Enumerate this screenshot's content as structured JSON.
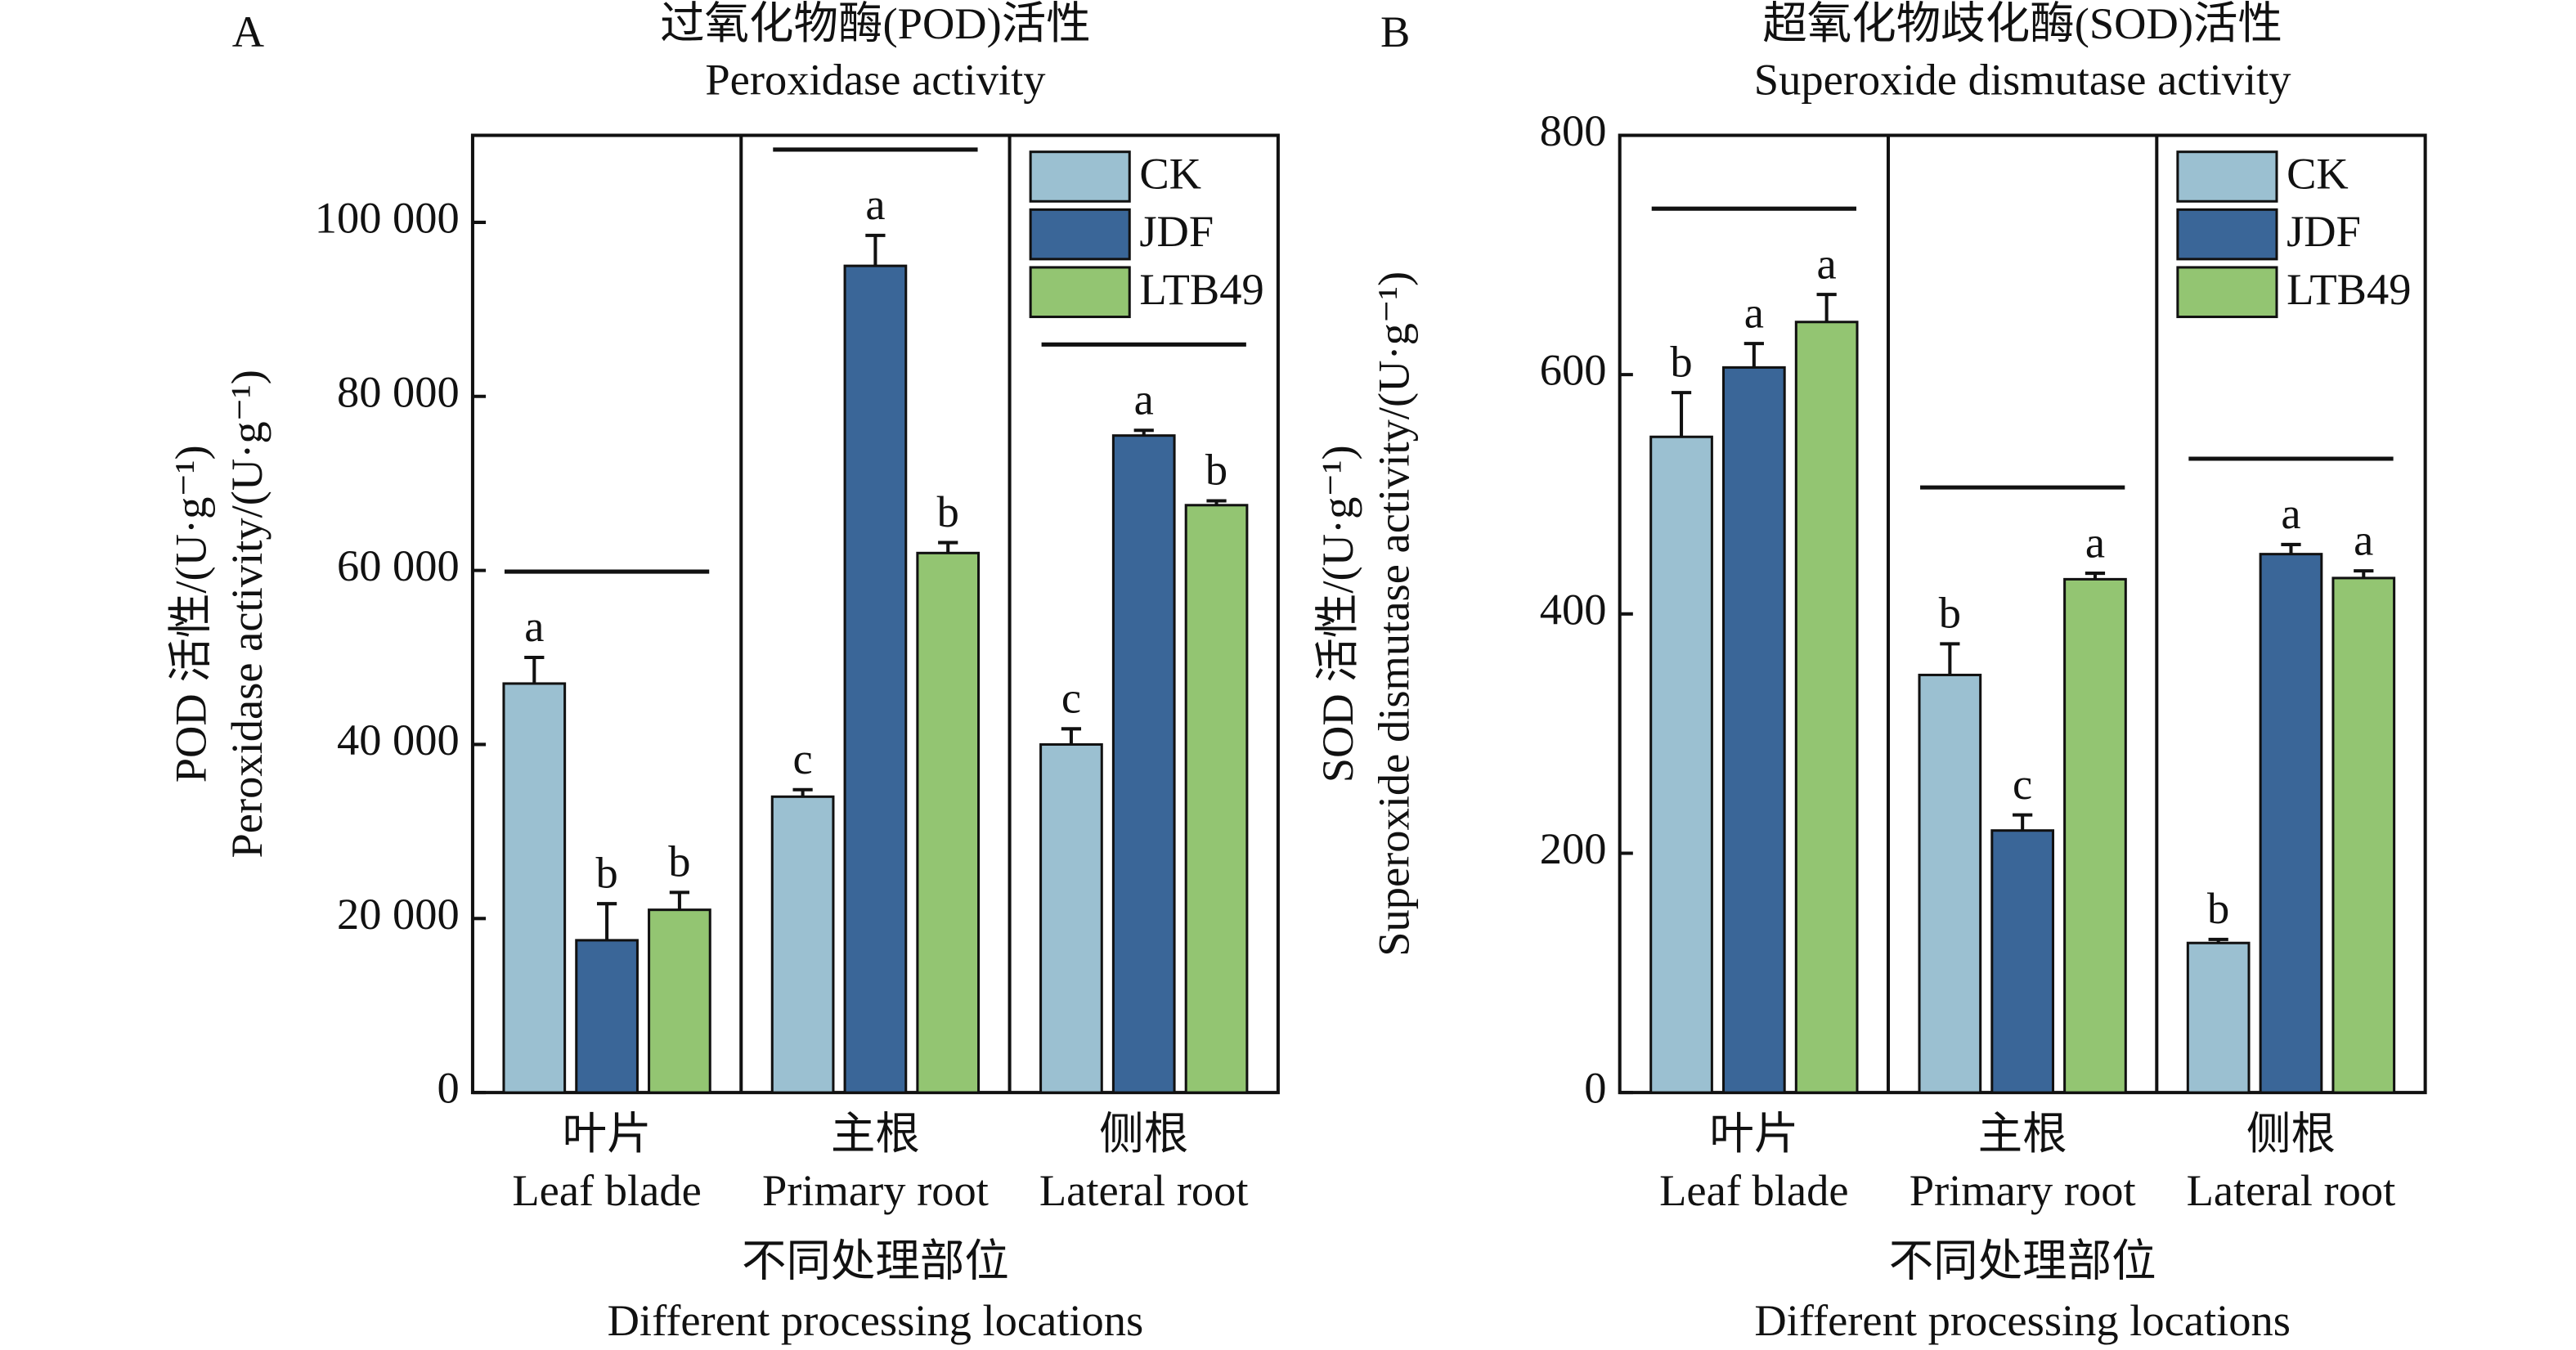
{
  "chart_data": [
    {
      "type": "bar",
      "panel": "A",
      "title": [
        "过氧化物酶(POD)活性",
        "Peroxidase activity"
      ],
      "y_label": [
        "POD 活性/(U·g⁻¹)",
        "Peroxidase activity/(U·g⁻¹)"
      ],
      "x_label": [
        "不同处理部位",
        "Different processing locations"
      ],
      "categories": [
        [
          "叶片",
          "Leaf blade"
        ],
        [
          "主根",
          "Primary root"
        ],
        [
          "侧根",
          "Lateral root"
        ]
      ],
      "series": [
        {
          "name": "CK",
          "color": "#9bc0d1",
          "values": [
            47000,
            34000,
            40000
          ],
          "errors": [
            3000,
            800,
            1800
          ],
          "labels": [
            "a",
            "c",
            "c"
          ]
        },
        {
          "name": "JDF",
          "color": "#3a6698",
          "values": [
            17500,
            95000,
            75500
          ],
          "errors": [
            4200,
            3500,
            600
          ],
          "labels": [
            "b",
            "a",
            "a"
          ]
        },
        {
          "name": "LTB49",
          "color": "#93c572",
          "values": [
            21000,
            62000,
            67500
          ],
          "errors": [
            2000,
            1200,
            500
          ],
          "labels": [
            "b",
            "b",
            "b"
          ]
        }
      ],
      "ylim": [
        0,
        110000
      ],
      "yticks": [
        0,
        {
          "value": 20000,
          "label": "20 000"
        },
        {
          "value": 40000,
          "label": "40 000"
        },
        {
          "value": 60000,
          "label": "60 000"
        },
        {
          "value": 80000,
          "label": "80 000"
        },
        {
          "value": 100000,
          "label": "100 000"
        }
      ],
      "legend": "upper right"
    },
    {
      "type": "bar",
      "panel": "B",
      "title": [
        "超氧化物歧化酶(SOD)活性",
        "Superoxide dismutase activity"
      ],
      "y_label": [
        "SOD 活性/(U·g⁻¹)",
        "Superoxide dismutase activity/(U·g⁻¹)"
      ],
      "x_label": [
        "不同处理部位",
        "Different processing locations"
      ],
      "categories": [
        [
          "叶片",
          "Leaf blade"
        ],
        [
          "主根",
          "Primary root"
        ],
        [
          "侧根",
          "Lateral root"
        ]
      ],
      "series": [
        {
          "name": "CK",
          "color": "#9bc0d1",
          "values": [
            548,
            349,
            125
          ],
          "errors": [
            37,
            26,
            3
          ],
          "labels": [
            "b",
            "b",
            "b"
          ]
        },
        {
          "name": "JDF",
          "color": "#3a6698",
          "values": [
            606,
            219,
            450
          ],
          "errors": [
            20,
            13,
            8
          ],
          "labels": [
            "a",
            "c",
            "a"
          ]
        },
        {
          "name": "LTB49",
          "color": "#93c572",
          "values": [
            644,
            429,
            430
          ],
          "errors": [
            23,
            5,
            6
          ],
          "labels": [
            "a",
            "a",
            "a"
          ]
        }
      ],
      "ylim": [
        0,
        800
      ],
      "yticks": [
        0,
        200,
        400,
        600,
        800
      ],
      "legend": "upper right"
    }
  ]
}
